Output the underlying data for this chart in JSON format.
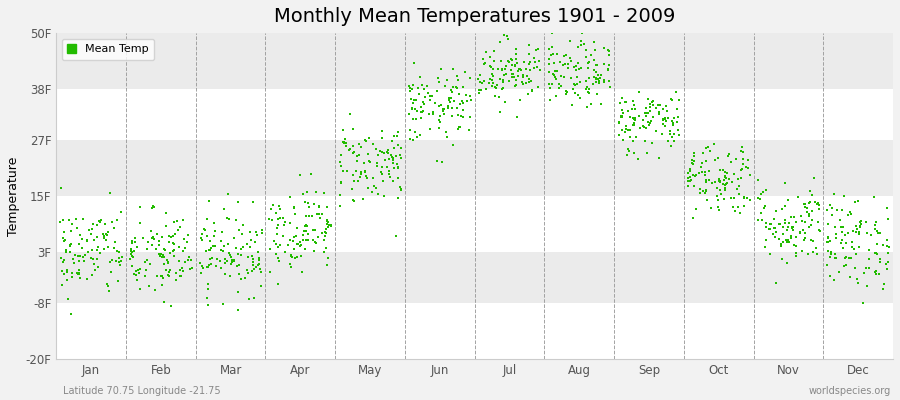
{
  "title": "Monthly Mean Temperatures 1901 - 2009",
  "ylabel": "Temperature",
  "yticks": [
    -20,
    -8,
    3,
    15,
    27,
    38,
    50
  ],
  "ytick_labels": [
    "-20F",
    "-8F",
    "3F",
    "15F",
    "27F",
    "38F",
    "50F"
  ],
  "ylim": [
    -20,
    50
  ],
  "months": [
    "Jan",
    "Feb",
    "Mar",
    "Apr",
    "May",
    "Jun",
    "Jul",
    "Aug",
    "Sep",
    "Oct",
    "Nov",
    "Dec"
  ],
  "dot_color": "#22bb00",
  "background_color": "#f2f2f2",
  "band_colors": [
    "#ffffff",
    "#ebebeb",
    "#ffffff",
    "#ebebeb",
    "#ffffff",
    "#ebebeb",
    "#ffffff"
  ],
  "title_fontsize": 14,
  "legend_label": "Mean Temp",
  "bottom_left_text": "Latitude 70.75 Longitude -21.75",
  "bottom_right_text": "worldspecies.org",
  "mean_temps": [
    3,
    2,
    3,
    8,
    22,
    34,
    42,
    41,
    31,
    19,
    9,
    5
  ],
  "std_devs": [
    5.0,
    5.0,
    4.5,
    4.5,
    4.5,
    4.0,
    3.5,
    3.5,
    3.5,
    4.0,
    4.5,
    5.0
  ],
  "n_years": 109,
  "seed": 42
}
